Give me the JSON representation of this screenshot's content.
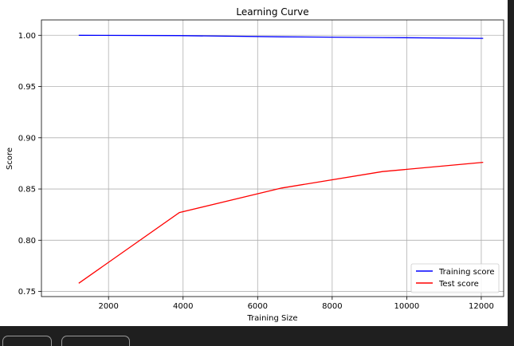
{
  "chart_data": {
    "type": "line",
    "title": "Learning Curve",
    "xlabel": "Training Size",
    "ylabel": "Score",
    "xlim": [
      200,
      12600
    ],
    "ylim": [
      0.745,
      1.015
    ],
    "xticks": [
      2000,
      4000,
      6000,
      8000,
      10000,
      12000
    ],
    "xtick_labels": [
      "2000",
      "4000",
      "6000",
      "8000",
      "10000",
      "12000"
    ],
    "yticks": [
      0.75,
      0.8,
      0.85,
      0.9,
      0.95,
      1.0
    ],
    "ytick_labels": [
      "0.75",
      "0.80",
      "0.85",
      "0.90",
      "0.95",
      "1.00"
    ],
    "grid": true,
    "legend_position": "lower-right",
    "x": [
      1200,
      3900,
      6650,
      9350,
      12050
    ],
    "series": [
      {
        "name": "Training score",
        "color": "#0000ff",
        "values": [
          1.0,
          0.9997,
          0.9985,
          0.9978,
          0.997
        ]
      },
      {
        "name": "Test score",
        "color": "#ff0000",
        "values": [
          0.758,
          0.827,
          0.851,
          0.867,
          0.876
        ]
      }
    ]
  }
}
